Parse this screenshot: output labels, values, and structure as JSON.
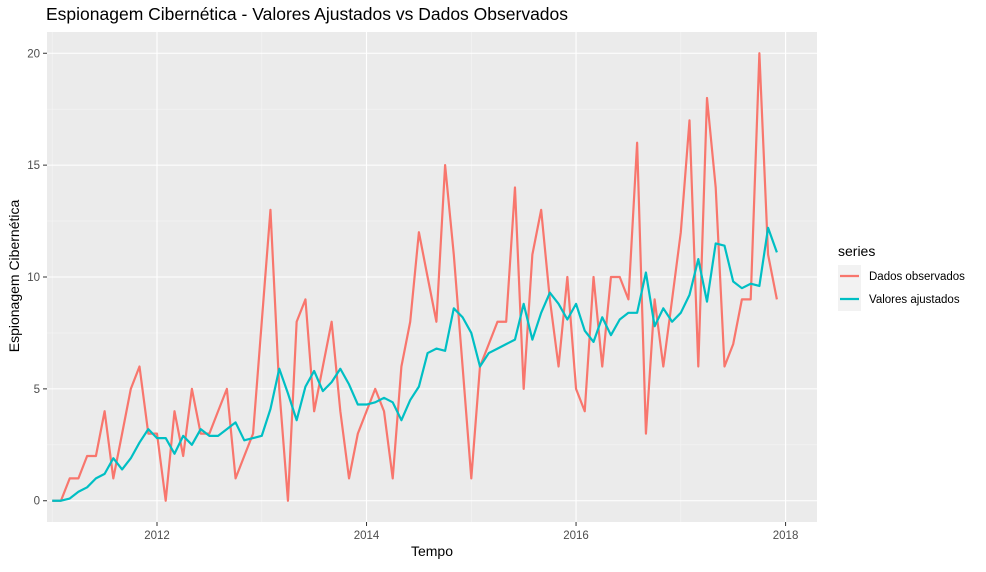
{
  "chart_data": {
    "type": "line",
    "title": "Espionagem Cibernética - Valores Ajustados vs Dados Observados",
    "xlabel": "Tempo",
    "ylabel": "Espionagem Cibernética",
    "xlim": [
      2010.95,
      2018.3
    ],
    "ylim": [
      -0.95,
      20.95
    ],
    "x_ticks": [
      2012,
      2014,
      2016,
      2018
    ],
    "x_tick_labels": [
      "2012",
      "2014",
      "2016",
      "2018"
    ],
    "y_ticks": [
      0,
      5,
      10,
      15,
      20
    ],
    "y_tick_labels": [
      "0",
      "5",
      "10",
      "15",
      "20"
    ],
    "grid": true,
    "legend": {
      "title": "series",
      "position": "right"
    },
    "x": [
      2011.0,
      2011.083,
      2011.167,
      2011.25,
      2011.333,
      2011.417,
      2011.5,
      2011.583,
      2011.667,
      2011.75,
      2011.833,
      2011.917,
      2012.0,
      2012.083,
      2012.167,
      2012.25,
      2012.333,
      2012.417,
      2012.5,
      2012.583,
      2012.667,
      2012.75,
      2012.833,
      2012.917,
      2013.0,
      2013.083,
      2013.167,
      2013.25,
      2013.333,
      2013.417,
      2013.5,
      2013.583,
      2013.667,
      2013.75,
      2013.833,
      2013.917,
      2014.0,
      2014.083,
      2014.167,
      2014.25,
      2014.333,
      2014.417,
      2014.5,
      2014.583,
      2014.667,
      2014.75,
      2014.833,
      2014.917,
      2015.0,
      2015.083,
      2015.167,
      2015.25,
      2015.333,
      2015.417,
      2015.5,
      2015.583,
      2015.667,
      2015.75,
      2015.833,
      2015.917,
      2016.0,
      2016.083,
      2016.167,
      2016.25,
      2016.333,
      2016.417,
      2016.5,
      2016.583,
      2016.667,
      2016.75,
      2016.833,
      2016.917,
      2017.0,
      2017.083,
      2017.167,
      2017.25,
      2017.333,
      2017.417,
      2017.5,
      2017.583,
      2017.667,
      2017.75,
      2017.833,
      2017.917
    ],
    "series": [
      {
        "name": "Dados observados",
        "color": "#F8766D",
        "values": [
          0,
          0,
          1,
          1,
          2,
          2,
          4,
          1,
          3,
          5,
          6,
          3,
          3,
          0,
          4,
          2,
          5,
          3,
          3,
          4,
          5,
          1,
          2,
          3,
          8,
          13,
          5,
          0,
          8,
          9,
          4,
          6,
          8,
          4,
          1,
          3,
          4,
          5,
          4,
          1,
          6,
          8,
          12,
          10,
          8,
          15,
          11,
          6,
          1,
          6,
          7,
          8,
          8,
          14,
          5,
          11,
          13,
          9,
          6,
          10,
          5,
          4,
          10,
          6,
          10,
          10,
          9,
          16,
          3,
          9,
          6,
          9,
          12,
          17,
          6,
          18,
          14,
          6,
          7,
          9,
          9,
          20,
          11,
          9
        ]
      },
      {
        "name": "Valores ajustados",
        "color": "#00BFC4",
        "values": [
          0,
          0,
          0.1,
          0.4,
          0.6,
          1.0,
          1.2,
          1.9,
          1.4,
          1.9,
          2.6,
          3.2,
          2.8,
          2.8,
          2.1,
          2.9,
          2.5,
          3.2,
          2.9,
          2.9,
          3.2,
          3.5,
          2.7,
          2.8,
          2.9,
          4.1,
          5.9,
          4.8,
          3.6,
          5.1,
          5.8,
          4.9,
          5.3,
          5.9,
          5.2,
          4.3,
          4.3,
          4.4,
          4.6,
          4.4,
          3.6,
          4.5,
          5.1,
          6.6,
          6.8,
          6.7,
          8.6,
          8.2,
          7.5,
          6.0,
          6.6,
          6.8,
          7.0,
          7.2,
          8.8,
          7.2,
          8.4,
          9.3,
          8.8,
          8.1,
          8.8,
          7.6,
          7.1,
          8.2,
          7.4,
          8.1,
          8.4,
          8.4,
          10.2,
          7.8,
          8.6,
          8.0,
          8.4,
          9.2,
          10.8,
          8.9,
          11.5,
          11.4,
          9.8,
          9.5,
          9.7,
          9.6,
          12.2,
          11.1
        ]
      }
    ]
  }
}
